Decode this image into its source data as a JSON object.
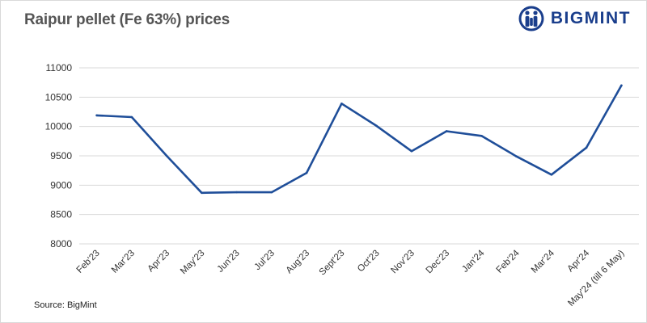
{
  "header": {
    "title": "Raipur pellet (Fe 63%) prices",
    "brand": "BIGMINT"
  },
  "footer": {
    "source": "Source: BigMint"
  },
  "colors": {
    "line": "#1f4e99",
    "grid": "#d9d9d9",
    "brand": "#1a3e8c"
  },
  "chart_data": {
    "type": "line",
    "title": "Raipur pellet (Fe 63%) prices",
    "xlabel": "",
    "ylabel": "",
    "categories": [
      "Feb'23",
      "Mar'23",
      "Apr'23",
      "May'23",
      "Jun'23",
      "Jul'23",
      "Aug'23",
      "Sept'23",
      "Oct'23",
      "Nov'23",
      "Dec'23",
      "Jan'24",
      "Feb'24",
      "Mar'24",
      "Apr'24",
      "May'24 (till 6 May)"
    ],
    "series": [
      {
        "name": "",
        "values": [
          10190,
          10160,
          9500,
          8870,
          8880,
          8880,
          9210,
          10390,
          10010,
          9580,
          9920,
          9840,
          9490,
          9180,
          9640,
          10700
        ]
      }
    ],
    "ylim": [
      8000,
      11000
    ],
    "yticks": [
      8000,
      8500,
      9000,
      9500,
      10000,
      10500,
      11000
    ],
    "grid": true,
    "legend": "none"
  }
}
